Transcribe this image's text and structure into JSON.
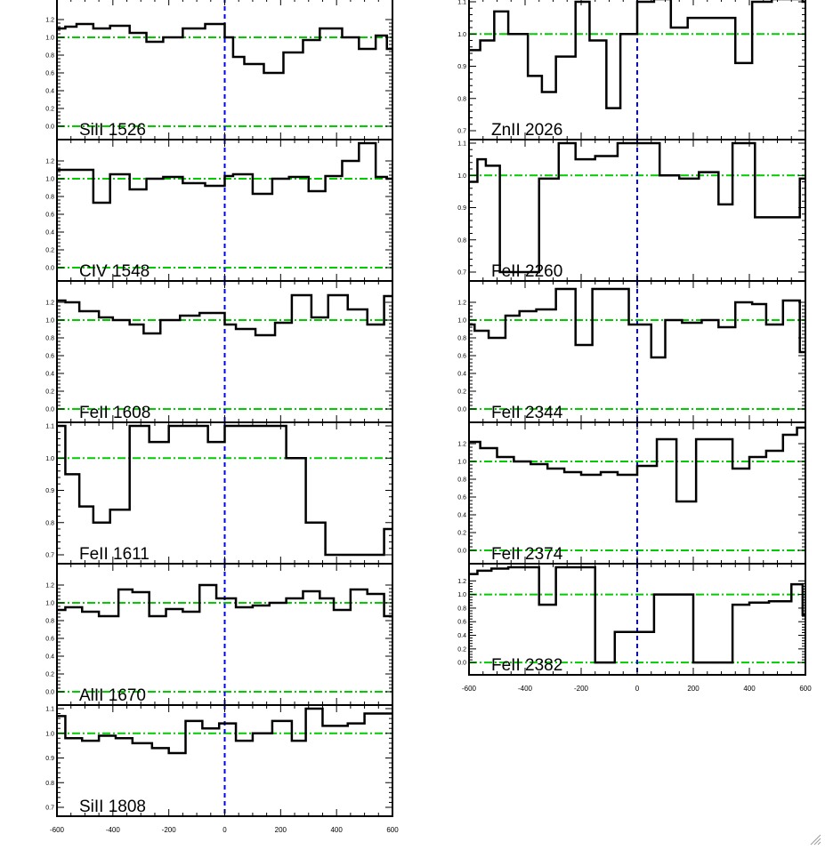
{
  "colors": {
    "unity_line": "#00cc00",
    "zero_line": "#00cc00",
    "velocity_zero": "#0000ff",
    "spectrum": "#000000",
    "axes": "#000000"
  },
  "chart_data": [
    {
      "type": "line",
      "step": true,
      "title": "SiII 1526",
      "xlim": [
        -600,
        600
      ],
      "ylim": [
        -0.05,
        1.4
      ],
      "yticks": [
        "0.0",
        "0.2",
        "0.4",
        "0.6",
        "0.8",
        "1.0",
        "1.2"
      ],
      "yticks_v": [
        0,
        0.2,
        0.4,
        0.6,
        0.8,
        1.0,
        1.2
      ],
      "xticks": [],
      "x": [
        -600,
        -570,
        -530,
        -470,
        -410,
        -340,
        -280,
        -220,
        -150,
        -70,
        0,
        30,
        70,
        140,
        210,
        280,
        340,
        420,
        480,
        540,
        580,
        600
      ],
      "y": [
        1.1,
        1.12,
        1.15,
        1.1,
        1.13,
        1.05,
        0.95,
        1.0,
        1.1,
        1.15,
        1.0,
        0.78,
        0.7,
        0.6,
        0.83,
        0.97,
        1.1,
        1.0,
        0.87,
        1.02,
        0.87,
        0.87
      ]
    },
    {
      "type": "line",
      "step": true,
      "title": "CIV 1548",
      "xlim": [
        -600,
        600
      ],
      "ylim": [
        -0.05,
        1.4
      ],
      "yticks": [
        "0.0",
        "0.2",
        "0.4",
        "0.6",
        "0.8",
        "1.0",
        "1.2"
      ],
      "yticks_v": [
        0,
        0.2,
        0.4,
        0.6,
        0.8,
        1.0,
        1.2
      ],
      "xticks": [],
      "x": [
        -600,
        -530,
        -470,
        -410,
        -340,
        -280,
        -220,
        -150,
        -70,
        0,
        30,
        100,
        170,
        230,
        300,
        360,
        420,
        480,
        540,
        580,
        600
      ],
      "y": [
        1.1,
        1.1,
        0.73,
        1.05,
        0.88,
        1.0,
        1.02,
        0.95,
        0.92,
        1.03,
        1.05,
        0.83,
        1.0,
        1.02,
        0.86,
        1.03,
        1.2,
        1.4,
        1.02,
        1.0,
        1.0
      ],
      "note": "extends above frame at right"
    },
    {
      "type": "line",
      "step": true,
      "title": "FeII 1608",
      "xlim": [
        -600,
        600
      ],
      "ylim": [
        -0.05,
        1.4
      ],
      "yticks": [
        "0.0",
        "0.2",
        "0.4",
        "0.6",
        "0.8",
        "1.0",
        "1.2"
      ],
      "yticks_v": [
        0,
        0.2,
        0.4,
        0.6,
        0.8,
        1.0,
        1.2
      ],
      "xticks": [],
      "x": [
        -600,
        -570,
        -520,
        -450,
        -400,
        -340,
        -290,
        -230,
        -160,
        -90,
        -30,
        0,
        40,
        110,
        180,
        240,
        310,
        370,
        440,
        510,
        570,
        600
      ],
      "y": [
        1.22,
        1.2,
        1.1,
        1.03,
        1.0,
        0.95,
        0.85,
        1.0,
        1.05,
        1.08,
        1.08,
        0.95,
        0.9,
        0.83,
        0.97,
        1.28,
        1.03,
        1.28,
        1.12,
        0.95,
        1.27,
        1.27
      ]
    },
    {
      "type": "line",
      "step": true,
      "title": "FeII 1611",
      "xlim": [
        -600,
        600
      ],
      "ylim": [
        0.7,
        1.1
      ],
      "yticks": [
        "0.7",
        "0.8",
        "0.9",
        "1.0",
        "1.1"
      ],
      "yticks_v": [
        0.7,
        0.8,
        0.9,
        1.0,
        1.1
      ],
      "xticks": [],
      "x": [
        -600,
        -570,
        -520,
        -470,
        -410,
        -340,
        -270,
        -200,
        -130,
        -60,
        0,
        70,
        160,
        220,
        290,
        360,
        570,
        600
      ],
      "y": [
        1.1,
        0.95,
        0.85,
        0.8,
        0.84,
        1.1,
        1.05,
        1.1,
        1.1,
        1.05,
        1.1,
        1.1,
        1.1,
        1.0,
        0.8,
        0.7,
        0.78,
        0.78
      ]
    },
    {
      "type": "line",
      "step": true,
      "title": "AlII 1670",
      "xlim": [
        -600,
        600
      ],
      "ylim": [
        -0.05,
        1.4
      ],
      "yticks": [
        "0.0",
        "0.2",
        "0.4",
        "0.6",
        "0.8",
        "1.0",
        "1.2"
      ],
      "yticks_v": [
        0,
        0.2,
        0.4,
        0.6,
        0.8,
        1.0,
        1.2
      ],
      "xticks": [],
      "x": [
        -600,
        -570,
        -510,
        -450,
        -380,
        -330,
        -270,
        -210,
        -150,
        -90,
        -30,
        0,
        40,
        100,
        160,
        220,
        280,
        340,
        390,
        450,
        510,
        570,
        600
      ],
      "y": [
        0.92,
        0.95,
        0.9,
        0.85,
        1.15,
        1.12,
        0.85,
        0.93,
        0.9,
        1.2,
        1.05,
        1.05,
        0.95,
        0.97,
        1.0,
        1.05,
        1.13,
        1.05,
        0.92,
        1.15,
        1.1,
        0.85,
        0.85
      ]
    },
    {
      "type": "line",
      "step": true,
      "title": "SiII 1808",
      "xlim": [
        -600,
        600
      ],
      "ylim": [
        0.7,
        1.1
      ],
      "yticks": [
        "0.7",
        "0.8",
        "0.9",
        "1.0",
        "1.1"
      ],
      "yticks_v": [
        0.7,
        0.8,
        0.9,
        1.0,
        1.1
      ],
      "xticks": [
        "-600",
        "-400",
        "-200",
        "0",
        "200",
        "400",
        "600"
      ],
      "xticks_v": [
        -600,
        -400,
        -200,
        0,
        200,
        400,
        600
      ],
      "x": [
        -600,
        -570,
        -510,
        -450,
        -390,
        -330,
        -260,
        -200,
        -140,
        -80,
        -20,
        40,
        100,
        170,
        240,
        290,
        350,
        390,
        440,
        500,
        550,
        600
      ],
      "y": [
        1.07,
        0.98,
        0.97,
        0.99,
        0.98,
        0.96,
        0.94,
        0.92,
        1.05,
        1.02,
        1.04,
        0.97,
        1.0,
        1.05,
        0.97,
        1.1,
        1.03,
        1.03,
        1.04,
        1.08,
        1.08,
        1.08
      ]
    },
    {
      "type": "line",
      "step": true,
      "title": "ZnII 2026",
      "xlim": [
        -600,
        600
      ],
      "ylim": [
        0.7,
        1.1
      ],
      "yticks": [
        "0.7",
        "0.8",
        "0.9",
        "1.0",
        "1.1"
      ],
      "yticks_v": [
        0.7,
        0.8,
        0.9,
        1.0,
        1.1
      ],
      "xticks": [],
      "x": [
        -600,
        -560,
        -510,
        -460,
        -390,
        -340,
        -290,
        -220,
        -170,
        -110,
        -60,
        0,
        60,
        120,
        180,
        240,
        290,
        350,
        410,
        480,
        550,
        590,
        600
      ],
      "y": [
        0.95,
        0.98,
        1.07,
        1.0,
        0.87,
        0.82,
        0.93,
        1.1,
        0.98,
        0.77,
        1.0,
        1.1,
        1.15,
        1.02,
        1.05,
        1.05,
        1.05,
        0.91,
        1.1,
        1.15,
        1.12,
        1.1,
        1.1
      ],
      "note": "extends above frame at right"
    },
    {
      "type": "line",
      "step": true,
      "title": "FeII 2260",
      "xlim": [
        -600,
        600
      ],
      "ylim": [
        0.7,
        1.1
      ],
      "yticks": [
        "0.7",
        "0.8",
        "0.9",
        "1.0",
        "1.1"
      ],
      "yticks_v": [
        0.7,
        0.8,
        0.9,
        1.0,
        1.1
      ],
      "xticks": [],
      "x": [
        -600,
        -570,
        -540,
        -490,
        -420,
        -350,
        -280,
        -220,
        -150,
        -70,
        0,
        80,
        150,
        220,
        290,
        340,
        400,
        420,
        480,
        540,
        580,
        600
      ],
      "y": [
        0.98,
        1.05,
        1.03,
        0.7,
        0.7,
        0.99,
        1.1,
        1.05,
        1.06,
        1.1,
        1.1,
        1.0,
        0.99,
        1.01,
        0.91,
        1.1,
        1.1,
        0.87,
        0.87,
        0.87,
        0.99,
        0.99
      ]
    },
    {
      "type": "line",
      "step": true,
      "title": "FeII 2344",
      "xlim": [
        -600,
        600
      ],
      "ylim": [
        -0.05,
        1.4
      ],
      "yticks": [
        "0.0",
        "0.2",
        "0.4",
        "0.6",
        "0.8",
        "1.0",
        "1.2"
      ],
      "yticks_v": [
        0,
        0.2,
        0.4,
        0.6,
        0.8,
        1.0,
        1.2
      ],
      "xticks": [],
      "x": [
        -600,
        -580,
        -530,
        -470,
        -420,
        -360,
        -290,
        -220,
        -160,
        -90,
        -30,
        0,
        50,
        100,
        160,
        230,
        290,
        350,
        410,
        460,
        520,
        580,
        600
      ],
      "y": [
        0.95,
        0.88,
        0.8,
        1.05,
        1.1,
        1.12,
        1.35,
        0.72,
        1.35,
        1.35,
        0.95,
        0.95,
        0.58,
        1.0,
        0.97,
        1.0,
        0.92,
        1.2,
        1.18,
        0.95,
        1.22,
        0.64,
        0.64
      ]
    },
    {
      "type": "line",
      "step": true,
      "title": "FeII 2374",
      "xlim": [
        -600,
        600
      ],
      "ylim": [
        -0.05,
        1.4
      ],
      "yticks": [
        "0.0",
        "0.2",
        "0.4",
        "0.6",
        "0.8",
        "1.0",
        "1.2"
      ],
      "yticks_v": [
        0,
        0.2,
        0.4,
        0.6,
        0.8,
        1.0,
        1.2
      ],
      "xticks": [],
      "x": [
        -600,
        -560,
        -500,
        -440,
        -380,
        -320,
        -260,
        -200,
        -130,
        -70,
        0,
        70,
        140,
        210,
        280,
        340,
        400,
        460,
        520,
        570,
        600
      ],
      "y": [
        1.22,
        1.15,
        1.05,
        1.0,
        0.97,
        0.92,
        0.88,
        0.85,
        0.88,
        0.85,
        0.95,
        1.25,
        0.55,
        1.25,
        1.25,
        0.92,
        1.05,
        1.12,
        1.3,
        1.38,
        1.38
      ]
    },
    {
      "type": "line",
      "step": true,
      "title": "FeII 2382",
      "xlim": [
        -600,
        600
      ],
      "ylim": [
        -0.05,
        1.4
      ],
      "yticks": [
        "0.0",
        "0.2",
        "0.4",
        "0.6",
        "0.8",
        "1.0",
        "1.2"
      ],
      "yticks_v": [
        0,
        0.2,
        0.4,
        0.6,
        0.8,
        1.0,
        1.2
      ],
      "xticks": [
        "-600",
        "-400",
        "-200",
        "0",
        "200",
        "400",
        "600"
      ],
      "xticks_v": [
        -600,
        -400,
        -200,
        0,
        200,
        400,
        600
      ],
      "x": [
        -600,
        -570,
        -520,
        -460,
        -400,
        -350,
        -290,
        -220,
        -150,
        -80,
        0,
        60,
        200,
        340,
        400,
        470,
        550,
        590,
        600
      ],
      "y": [
        1.3,
        1.35,
        1.38,
        1.4,
        1.4,
        0.85,
        1.4,
        1.4,
        0.0,
        0.45,
        0.45,
        1.0,
        0.0,
        0.85,
        0.88,
        0.9,
        1.15,
        0.7,
        0.7
      ]
    }
  ]
}
